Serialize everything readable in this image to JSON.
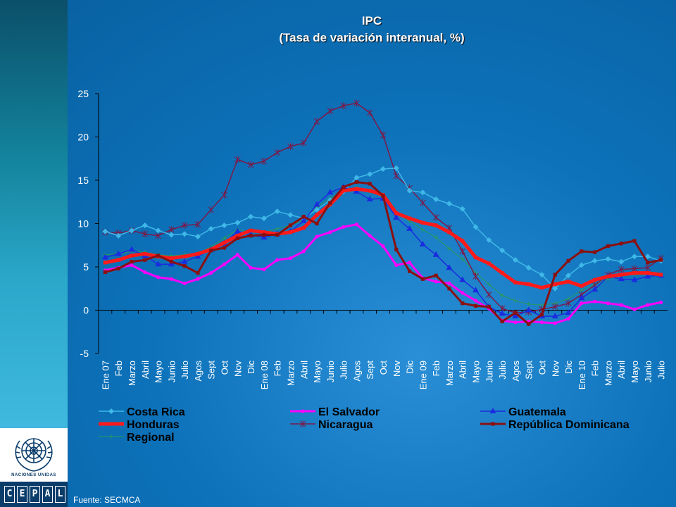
{
  "title": "IPC",
  "subtitle": "(Tasa de variación interanual, %)",
  "source": "Fuente: SECMCA",
  "logo": {
    "un_text": "NACIONES UNIDAS",
    "cepal_letters": [
      "C",
      "E",
      "P",
      "A",
      "L"
    ]
  },
  "chart_data": {
    "type": "line",
    "title": "IPC",
    "subtitle": "(Tasa de variación interanual, %)",
    "xlabel": "",
    "ylabel": "",
    "ylim": [
      -5,
      25
    ],
    "yticks": [
      25,
      20,
      15,
      10,
      5,
      0,
      -5
    ],
    "grid": false,
    "legend": "bottom",
    "categories": [
      "Ene 07",
      "Feb",
      "Marzo",
      "Abril",
      "Mayo",
      "Junio",
      "Julio",
      "Agos",
      "Sept",
      "Oct",
      "Nov",
      "Dic",
      "Ene 08",
      "Feb",
      "Marzo",
      "Abril",
      "Mayo",
      "Junio",
      "Julio",
      "Agos",
      "Sept",
      "Oct",
      "Nov",
      "Dic",
      "Ene 09",
      "Feb",
      "Marzo",
      "Abril",
      "Mayo",
      "Junio",
      "Julio",
      "Agos",
      "Sept",
      "Oct",
      "Nov",
      "Dic",
      "Ene 10",
      "Feb",
      "Marzo",
      "Abril",
      "Mayo",
      "Junio",
      "Julio"
    ],
    "series": [
      {
        "name": "Costa Rica",
        "color": "#3fb8e8",
        "marker": "diamond",
        "width": 1.5,
        "values": [
          9.1,
          8.6,
          9.2,
          9.8,
          9.2,
          8.7,
          8.8,
          8.5,
          9.4,
          9.8,
          10.1,
          10.8,
          10.6,
          11.4,
          11.0,
          10.6,
          11.6,
          12.7,
          13.7,
          15.3,
          15.7,
          16.3,
          16.4,
          13.8,
          13.6,
          12.8,
          12.3,
          11.7,
          9.6,
          8.1,
          6.9,
          5.8,
          4.9,
          4.1,
          2.5,
          4.0,
          5.2,
          5.7,
          5.9,
          5.6,
          6.2,
          6.2,
          5.7
        ]
      },
      {
        "name": "El Salvador",
        "color": "#ff00ff",
        "marker": "circle",
        "width": 3,
        "values": [
          4.6,
          4.9,
          5.2,
          4.4,
          3.8,
          3.6,
          3.1,
          3.6,
          4.3,
          5.3,
          6.4,
          4.9,
          4.7,
          5.8,
          6.0,
          6.8,
          8.5,
          9.0,
          9.6,
          9.9,
          8.6,
          7.4,
          5.2,
          5.5,
          3.7,
          3.3,
          3.1,
          2.0,
          1.1,
          0.2,
          -1.2,
          -1.4,
          -1.3,
          -1.4,
          -1.5,
          -1.0,
          0.8,
          1.0,
          0.8,
          0.6,
          0.1,
          0.6,
          0.9
        ]
      },
      {
        "name": "Guatemala",
        "color": "#1a2be0",
        "marker": "triangle",
        "width": 1.5,
        "values": [
          6.1,
          6.5,
          7.0,
          6.3,
          5.3,
          5.3,
          5.6,
          6.2,
          7.0,
          7.7,
          9.1,
          8.7,
          8.4,
          8.8,
          9.1,
          10.3,
          12.2,
          13.6,
          14.2,
          13.7,
          12.8,
          12.9,
          10.7,
          9.4,
          7.6,
          6.4,
          4.9,
          3.5,
          2.3,
          0.4,
          -0.4,
          -0.7,
          0.0,
          -0.7,
          -0.7,
          -0.3,
          1.4,
          2.4,
          3.9,
          3.6,
          3.5,
          3.9,
          4.0
        ]
      },
      {
        "name": "Honduras",
        "color": "#ff1a1a",
        "marker": "square",
        "width": 5,
        "values": [
          5.5,
          5.8,
          6.3,
          6.5,
          6.2,
          6.0,
          6.2,
          6.5,
          7.0,
          7.8,
          8.6,
          9.2,
          9.0,
          8.8,
          9.0,
          9.5,
          11.0,
          12.2,
          13.8,
          14.0,
          13.8,
          13.3,
          11.2,
          10.6,
          10.1,
          9.8,
          9.0,
          8.0,
          6.1,
          5.4,
          4.3,
          3.2,
          3.0,
          2.6,
          3.0,
          3.3,
          2.8,
          3.5,
          3.9,
          4.1,
          4.3,
          4.3,
          4.1
        ]
      },
      {
        "name": "Nicaragua",
        "color": "#7a1a4a",
        "marker": "star",
        "width": 1.5,
        "values": [
          9.0,
          8.9,
          9.2,
          8.8,
          8.6,
          9.3,
          9.8,
          9.9,
          11.6,
          13.3,
          17.4,
          16.8,
          17.2,
          18.2,
          18.9,
          19.3,
          21.8,
          23.0,
          23.6,
          23.9,
          22.8,
          20.2,
          15.5,
          14.1,
          12.4,
          10.7,
          9.5,
          6.8,
          3.9,
          1.8,
          0.2,
          -0.3,
          -0.2,
          0.1,
          0.4,
          0.8,
          1.8,
          2.9,
          4.1,
          4.7,
          4.8,
          4.9,
          6.0
        ]
      },
      {
        "name": "República Dominicana",
        "color": "#8a1010",
        "marker": "square",
        "width": 3,
        "values": [
          4.4,
          4.8,
          5.6,
          5.8,
          6.3,
          5.6,
          5.1,
          4.3,
          6.9,
          7.2,
          8.3,
          8.6,
          8.7,
          8.7,
          9.8,
          10.8,
          10.0,
          12.4,
          14.2,
          14.8,
          14.6,
          13.2,
          7.0,
          4.5,
          3.6,
          4.0,
          2.5,
          0.8,
          0.5,
          0.4,
          -1.3,
          -0.3,
          -1.6,
          -0.5,
          4.1,
          5.7,
          6.8,
          6.7,
          7.4,
          7.7,
          8.0,
          5.5,
          5.8
        ]
      },
      {
        "name": "Regional",
        "color": "#2a9a5a",
        "marker": "cross",
        "width": 1,
        "values": [
          6.4,
          6.5,
          6.8,
          6.7,
          6.4,
          6.3,
          6.4,
          6.6,
          7.3,
          8.3,
          9.3,
          9.0,
          9.0,
          9.4,
          9.8,
          10.4,
          11.9,
          12.9,
          13.8,
          14.2,
          13.7,
          13.2,
          11.2,
          10.3,
          9.3,
          8.4,
          7.1,
          5.9,
          4.3,
          3.0,
          1.7,
          1.1,
          0.7,
          0.6,
          0.8,
          1.3,
          2.3,
          3.0,
          3.6,
          4.0,
          4.1,
          4.1,
          4.1
        ]
      }
    ]
  }
}
